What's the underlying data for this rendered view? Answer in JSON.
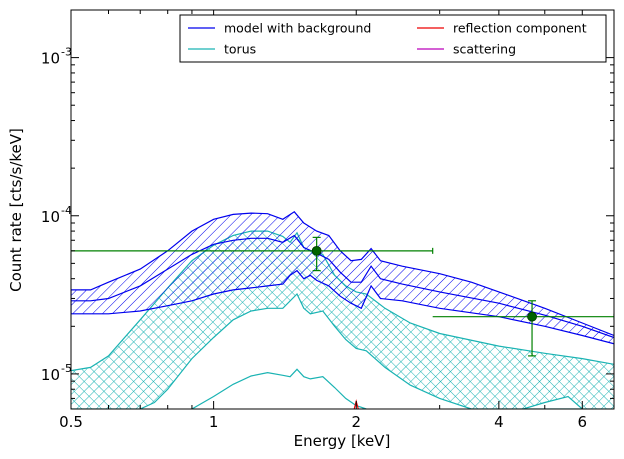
{
  "chart_data": {
    "type": "line",
    "xlabel": "Energy [keV]",
    "ylabel": "Count rate [cts/s/keV]",
    "xscale": "log",
    "yscale": "log",
    "xlim": [
      0.5,
      7.0
    ],
    "ylim": [
      6e-06,
      0.002
    ],
    "x_ticks": [
      {
        "value": 0.5,
        "label": "0.5"
      },
      {
        "value": 1,
        "label": "1"
      },
      {
        "value": 2,
        "label": "2"
      },
      {
        "value": 4,
        "label": "4"
      },
      {
        "value": 6,
        "label": "6"
      }
    ],
    "y_ticks": [
      {
        "value": 1e-05,
        "base": "10",
        "exp": "-5"
      },
      {
        "value": 0.0001,
        "base": "10",
        "exp": "-4"
      },
      {
        "value": 0.001,
        "base": "10",
        "exp": "-3"
      }
    ],
    "legend_position": "top-right",
    "grid": false,
    "series": [
      {
        "name": "model with background",
        "color": "#0000ee",
        "hatch": "diagonal",
        "upper": [
          [
            0.5,
            3.4e-05
          ],
          [
            0.55,
            3.4e-05
          ],
          [
            0.6,
            3.8e-05
          ],
          [
            0.7,
            4.6e-05
          ],
          [
            0.8,
            6e-05
          ],
          [
            0.9,
            8e-05
          ],
          [
            1.0,
            9.5e-05
          ],
          [
            1.1,
            0.000102
          ],
          [
            1.2,
            0.000104
          ],
          [
            1.3,
            0.000103
          ],
          [
            1.4,
            9.5e-05
          ],
          [
            1.48,
            0.000106
          ],
          [
            1.55,
            9e-05
          ],
          [
            1.65,
            8e-05
          ],
          [
            1.75,
            7.5e-05
          ],
          [
            1.85,
            6e-05
          ],
          [
            1.95,
            5.2e-05
          ],
          [
            2.05,
            5.3e-05
          ],
          [
            2.15,
            6.2e-05
          ],
          [
            2.25,
            5.2e-05
          ],
          [
            2.5,
            4.8e-05
          ],
          [
            3.0,
            4.3e-05
          ],
          [
            3.5,
            3.8e-05
          ],
          [
            4.0,
            3.3e-05
          ],
          [
            5.0,
            2.6e-05
          ],
          [
            6.0,
            2.1e-05
          ],
          [
            7.0,
            1.75e-05
          ]
        ],
        "lower": [
          [
            0.5,
            2.4e-05
          ],
          [
            0.6,
            2.4e-05
          ],
          [
            0.7,
            2.5e-05
          ],
          [
            0.8,
            2.7e-05
          ],
          [
            0.9,
            2.9e-05
          ],
          [
            1.0,
            3.2e-05
          ],
          [
            1.1,
            3.4e-05
          ],
          [
            1.2,
            3.5e-05
          ],
          [
            1.3,
            3.6e-05
          ],
          [
            1.4,
            3.7e-05
          ],
          [
            1.45,
            4.2e-05
          ],
          [
            1.5,
            4.5e-05
          ],
          [
            1.55,
            4e-05
          ],
          [
            1.6,
            4.2e-05
          ],
          [
            1.65,
            3.9e-05
          ],
          [
            1.75,
            3.6e-05
          ],
          [
            1.85,
            3.1e-05
          ],
          [
            1.95,
            2.8e-05
          ],
          [
            2.05,
            2.6e-05
          ],
          [
            2.15,
            3.6e-05
          ],
          [
            2.25,
            3e-05
          ],
          [
            2.5,
            2.9e-05
          ],
          [
            3.0,
            2.6e-05
          ],
          [
            4.0,
            2.3e-05
          ],
          [
            5.0,
            2e-05
          ],
          [
            6.0,
            1.75e-05
          ],
          [
            7.0,
            1.55e-05
          ]
        ],
        "mid": [
          [
            0.5,
            2.9e-05
          ],
          [
            0.55,
            2.9e-05
          ],
          [
            0.6,
            3e-05
          ],
          [
            0.7,
            3.6e-05
          ],
          [
            0.8,
            4.6e-05
          ],
          [
            0.9,
            5.7e-05
          ],
          [
            1.0,
            6.6e-05
          ],
          [
            1.1,
            7e-05
          ],
          [
            1.2,
            7.2e-05
          ],
          [
            1.3,
            7.2e-05
          ],
          [
            1.4,
            6.8e-05
          ],
          [
            1.48,
            7.5e-05
          ],
          [
            1.55,
            6.3e-05
          ],
          [
            1.65,
            5.8e-05
          ],
          [
            1.75,
            5.3e-05
          ],
          [
            1.85,
            4.4e-05
          ],
          [
            1.95,
            3.8e-05
          ],
          [
            2.05,
            3.8e-05
          ],
          [
            2.15,
            4.8e-05
          ],
          [
            2.25,
            4e-05
          ],
          [
            2.5,
            3.7e-05
          ],
          [
            3.0,
            3.3e-05
          ],
          [
            4.0,
            2.8e-05
          ],
          [
            5.0,
            2.35e-05
          ],
          [
            6.0,
            2e-05
          ],
          [
            7.0,
            1.7e-05
          ]
        ]
      },
      {
        "name": "torus",
        "color": "#1ab3b3",
        "hatch": "cross",
        "upper": [
          [
            0.5,
            1.05e-05
          ],
          [
            0.55,
            1.1e-05
          ],
          [
            0.6,
            1.3e-05
          ],
          [
            0.7,
            2.2e-05
          ],
          [
            0.8,
            3.5e-05
          ],
          [
            0.9,
            5.2e-05
          ],
          [
            1.0,
            6.5e-05
          ],
          [
            1.1,
            7.5e-05
          ],
          [
            1.2,
            8e-05
          ],
          [
            1.3,
            8e-05
          ],
          [
            1.4,
            7.4e-05
          ],
          [
            1.45,
            6.8e-05
          ],
          [
            1.5,
            7.8e-05
          ],
          [
            1.55,
            6.3e-05
          ],
          [
            1.6,
            6e-05
          ],
          [
            1.7,
            5.7e-05
          ],
          [
            1.8,
            4.2e-05
          ],
          [
            1.9,
            3.6e-05
          ],
          [
            2.0,
            3.3e-05
          ],
          [
            2.1,
            3.2e-05
          ],
          [
            2.3,
            2.6e-05
          ],
          [
            2.6,
            2.1e-05
          ],
          [
            3.0,
            1.8e-05
          ],
          [
            4.0,
            1.5e-05
          ],
          [
            5.0,
            1.35e-05
          ],
          [
            6.0,
            1.25e-05
          ],
          [
            7.0,
            1.15e-05
          ]
        ],
        "lower": [
          [
            0.5,
            6e-06
          ],
          [
            0.7,
            6e-06
          ],
          [
            0.75,
            6.6e-06
          ],
          [
            0.8,
            8e-06
          ],
          [
            0.9,
            1.25e-05
          ],
          [
            1.0,
            1.7e-05
          ],
          [
            1.1,
            2.2e-05
          ],
          [
            1.2,
            2.5e-05
          ],
          [
            1.3,
            2.6e-05
          ],
          [
            1.4,
            2.6e-05
          ],
          [
            1.5,
            3.2e-05
          ],
          [
            1.55,
            2.6e-05
          ],
          [
            1.6,
            2.4e-05
          ],
          [
            1.7,
            2.5e-05
          ],
          [
            1.8,
            2e-05
          ],
          [
            1.9,
            1.65e-05
          ],
          [
            2.0,
            1.45e-05
          ],
          [
            2.1,
            1.4e-05
          ],
          [
            2.3,
            1.1e-05
          ],
          [
            2.6,
            8.5e-06
          ],
          [
            3.0,
            7e-06
          ],
          [
            3.5,
            6e-06
          ],
          [
            7.0,
            6e-06
          ]
        ],
        "tail_lower": [
          [
            4.5,
            6e-06
          ],
          [
            5.0,
            6.6e-06
          ],
          [
            5.6,
            7.2e-06
          ],
          [
            6.0,
            6e-06
          ]
        ]
      },
      {
        "name": "reflection component",
        "color": "#ee0000",
        "points": [
          [
            1.98,
            6e-06
          ],
          [
            2.0,
            6.7e-06
          ],
          [
            2.02,
            6e-06
          ]
        ]
      },
      {
        "name": "scattering",
        "color": "#bb00bb",
        "points": []
      }
    ],
    "lower_hump": {
      "color": "#ffffff",
      "points": [
        [
          0.9,
          6e-06
        ],
        [
          1.0,
          7.2e-06
        ],
        [
          1.1,
          8.6e-06
        ],
        [
          1.2,
          9.7e-06
        ],
        [
          1.3,
          1.02e-05
        ],
        [
          1.4,
          9.8e-06
        ],
        [
          1.45,
          9.6e-06
        ],
        [
          1.5,
          1.07e-05
        ],
        [
          1.55,
          9.6e-06
        ],
        [
          1.6,
          9.3e-06
        ],
        [
          1.7,
          9.6e-06
        ],
        [
          1.8,
          8.2e-06
        ],
        [
          1.9,
          7e-06
        ],
        [
          2.0,
          6.3e-06
        ],
        [
          2.1,
          6e-06
        ]
      ]
    },
    "data_points": [
      {
        "x": 1.65,
        "xerr": [
          0.5,
          2.9
        ],
        "y": 6e-05,
        "yerr": [
          4.5e-05,
          7.3e-05
        ],
        "color": "#006400",
        "bar_color": "#008000"
      },
      {
        "x": 4.7,
        "xerr": [
          2.9,
          7.0
        ],
        "y": 2.3e-05,
        "yerr": [
          1.3e-05,
          2.9e-05
        ],
        "color": "#006400",
        "bar_color": "#008000"
      }
    ]
  }
}
